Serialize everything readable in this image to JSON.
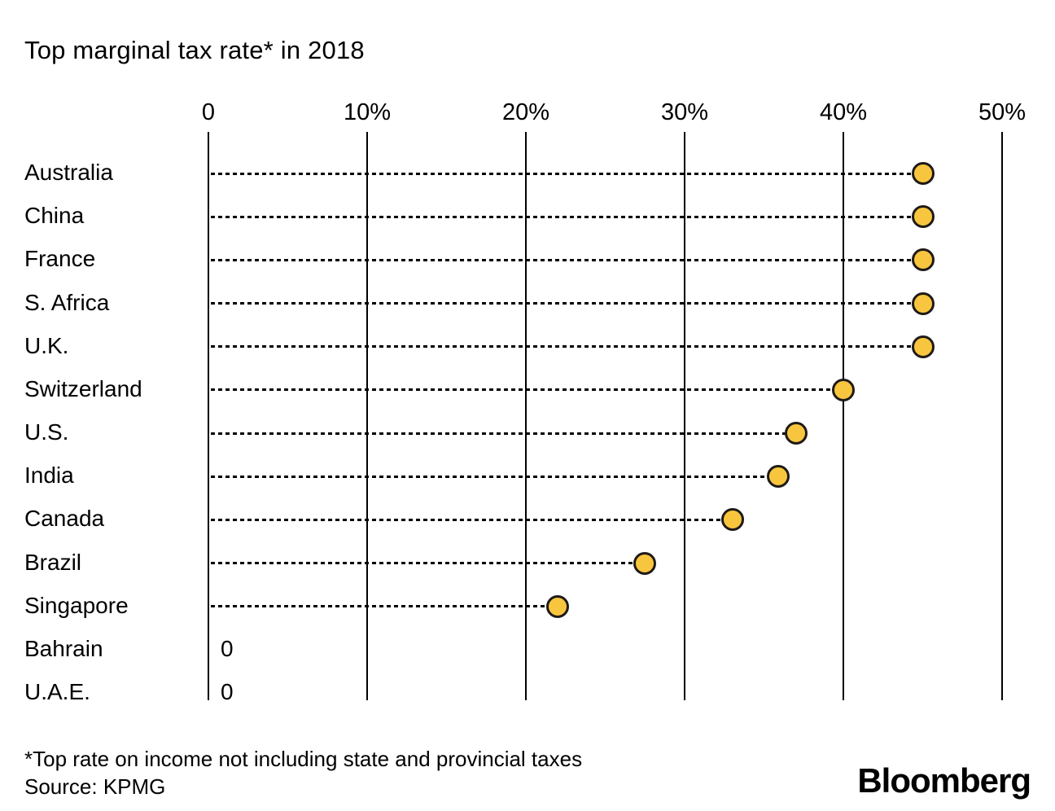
{
  "title": "Top marginal tax rate* in 2018",
  "footer": {
    "footnote": "*Top rate on income not including state and provincial taxes",
    "source": "Source: KPMG",
    "brand": "Bloomberg"
  },
  "colors": {
    "dot_fill": "#F8C63E",
    "dot_stroke": "#1E1A17",
    "axis": "#000000",
    "text": "#000000",
    "background": "#FFFFFF"
  },
  "chart_data": {
    "type": "scatter",
    "subtype": "horizontal-dot-plot",
    "title": "Top marginal tax rate* in 2018",
    "xlabel": "",
    "ylabel": "",
    "xlim": [
      0,
      50
    ],
    "grid": "vertical-solid-gridlines",
    "leader_lines": "dashed-from-zero-to-dot",
    "x_ticks": [
      {
        "value": 0,
        "label": "0"
      },
      {
        "value": 10,
        "label": "10%"
      },
      {
        "value": 20,
        "label": "20%"
      },
      {
        "value": 30,
        "label": "30%"
      },
      {
        "value": 40,
        "label": "40%"
      },
      {
        "value": 50,
        "label": "50%"
      }
    ],
    "categories": [
      "Australia",
      "China",
      "France",
      "S. Africa",
      "U.K.",
      "Switzerland",
      "U.S.",
      "India",
      "Canada",
      "Brazil",
      "Singapore",
      "Bahrain",
      "U.A.E."
    ],
    "values": [
      45,
      45,
      45,
      45,
      45,
      40,
      37,
      35.9,
      33,
      27.5,
      22,
      0,
      0
    ],
    "value_unit": "%",
    "zero_display": "0"
  }
}
